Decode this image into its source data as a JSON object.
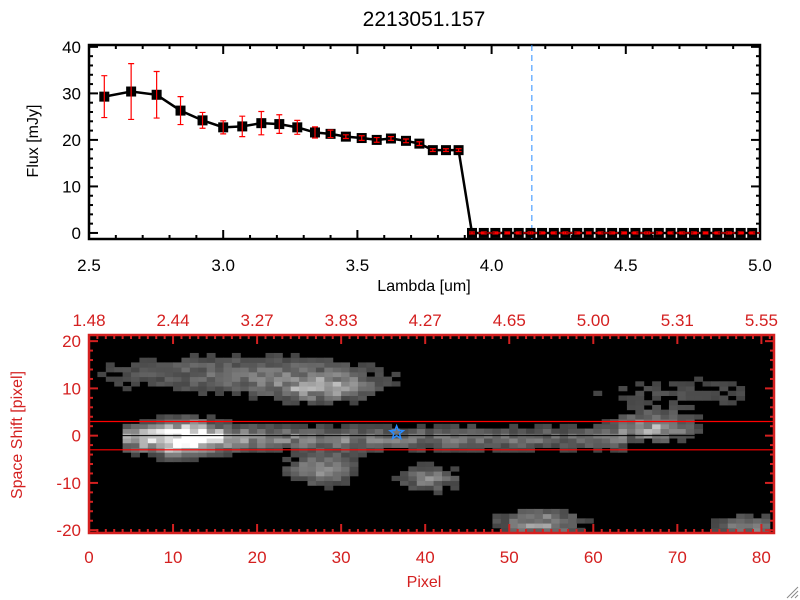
{
  "chart_data": [
    {
      "type": "line",
      "title": "2213051.157",
      "xlabel": "Lambda [um]",
      "ylabel": "Flux [mJy]",
      "xlim": [
        2.5,
        5.0
      ],
      "ylim": [
        -1.3,
        40.4
      ],
      "xticks": [
        "2.5",
        "3.0",
        "3.5",
        "4.0",
        "4.5",
        "5.0"
      ],
      "yticks": [
        "0",
        "10",
        "20",
        "30",
        "40"
      ],
      "series": [
        {
          "name": "flux",
          "x": [
            2.557,
            2.657,
            2.752,
            2.841,
            2.923,
            3.0,
            3.071,
            3.142,
            3.209,
            3.276,
            3.342,
            3.4,
            3.457,
            3.516,
            3.572,
            3.625,
            3.681,
            3.731,
            3.781,
            3.83,
            3.877,
            3.927,
            3.971,
            4.014,
            4.058,
            4.101,
            4.145,
            4.188,
            4.232,
            4.275,
            4.319,
            4.362,
            4.406,
            4.449,
            4.493,
            4.536,
            4.58,
            4.623,
            4.667,
            4.71,
            4.754,
            4.797,
            4.841,
            4.884,
            4.928,
            4.971
          ],
          "y": [
            29.3,
            30.4,
            29.7,
            26.3,
            24.2,
            22.7,
            22.9,
            23.6,
            23.4,
            22.7,
            21.6,
            21.3,
            20.7,
            20.4,
            20.0,
            20.3,
            19.8,
            19.2,
            17.8,
            17.8,
            17.8,
            0,
            0,
            0,
            0,
            0,
            0,
            0,
            0,
            0,
            0,
            0,
            0,
            0,
            0,
            0,
            0,
            0,
            0,
            0,
            0,
            0,
            0,
            0,
            0,
            0
          ],
          "yerr": [
            4.5,
            6.0,
            5.0,
            3.0,
            1.7,
            1.4,
            2.2,
            2.5,
            2.0,
            1.5,
            1.2,
            0.8,
            0.4,
            0.5,
            0.5,
            0.4,
            0.4,
            0.4,
            0.3,
            0.3,
            0.3,
            0.2,
            0.2,
            0.2,
            0.2,
            0.2,
            0.2,
            0.2,
            0.2,
            0.2,
            0.2,
            0.2,
            0.2,
            0.2,
            0.2,
            0.2,
            0.2,
            0.2,
            0.2,
            0.2,
            0.2,
            0.2,
            0.2,
            0.2,
            0.2,
            0.2
          ]
        }
      ],
      "vline_x": 4.15,
      "hline_y": 0,
      "colors": {
        "line": "#000000",
        "errorbar": "#ff0000",
        "vline": "#2a8cff",
        "hline": "#ff0000"
      }
    },
    {
      "type": "heatmap",
      "xlabel": "Pixel",
      "ylabel": "Space Shift [pixel]",
      "xlim": [
        0,
        81.5
      ],
      "ylim": [
        -20.6,
        21.3
      ],
      "xticks": [
        "0",
        "10",
        "20",
        "30",
        "40",
        "50",
        "60",
        "70",
        "80"
      ],
      "yticks": [
        "20",
        "10",
        "0",
        "-10",
        "-20"
      ],
      "top_xticks": [
        "1.48",
        "2.44",
        "3.27",
        "3.83",
        "4.27",
        "4.65",
        "5.00",
        "5.31",
        "5.55"
      ],
      "aperture": [
        -3,
        3
      ],
      "center_line": 0,
      "star": {
        "pixel": 36.6,
        "shift": 0.6
      },
      "features": [
        {
          "pixel": 11,
          "shift": -0.5,
          "sx": 3,
          "sy": 2.5,
          "amp": 0.75
        },
        {
          "pixel": 67,
          "shift": 1.8,
          "sx": 3,
          "sy": 2,
          "amp": 0.55
        },
        {
          "pixel": 27,
          "shift": -7,
          "sx": 3,
          "sy": 2.5,
          "amp": 0.4
        },
        {
          "pixel": 40,
          "shift": -9,
          "sx": 2.5,
          "sy": 2,
          "amp": 0.35
        },
        {
          "pixel": 53,
          "shift": -18.5,
          "sx": 3.5,
          "sy": 2,
          "amp": 0.45
        },
        {
          "pixel": 78,
          "shift": -19.5,
          "sx": 3,
          "sy": 2,
          "amp": 0.35
        },
        {
          "pixel": 27,
          "shift": 10,
          "sx": 4,
          "sy": 2,
          "amp": 0.4
        },
        {
          "pixel": 18,
          "shift": 13,
          "sx": 12,
          "sy": 3,
          "amp": 0.3
        },
        {
          "pixel": 70,
          "shift": 9,
          "sx": 10,
          "sy": 3,
          "amp": 0.15
        }
      ],
      "colors": {
        "axes": "#d42020",
        "aperture": "#ff0000",
        "star": "#2a8cff"
      }
    }
  ]
}
